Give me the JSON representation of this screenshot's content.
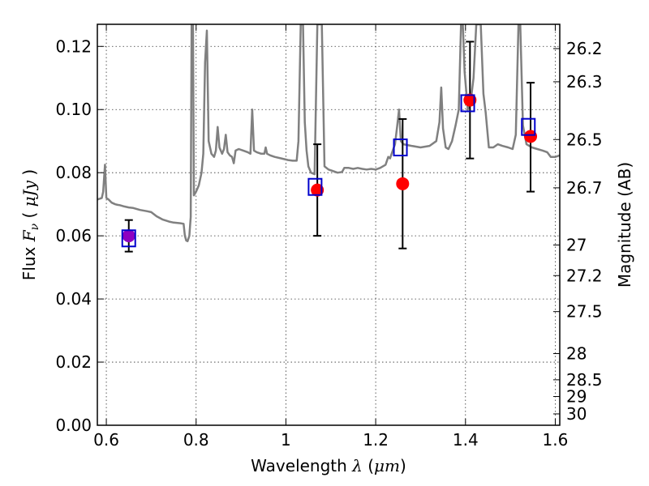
{
  "chart_data": {
    "type": "scatter",
    "xlabel": "Wavelength  λ (μm)",
    "ylabel": "Flux  F_ν  ( μJy )",
    "ylabel_parts": {
      "prefix": "Flux ",
      "symbol": "F",
      "subscript": "ν",
      "open": " ( ",
      "unit": "μJy",
      "close": " )"
    },
    "xlabel_parts": {
      "prefix": "Wavelength  ",
      "symbol": "λ",
      "open": " (",
      "unit": "μm",
      "close": ")"
    },
    "y2label": "Magnitude (AB)",
    "xlim": [
      0.58,
      1.61
    ],
    "ylim": [
      0.0,
      0.127
    ],
    "grid": true,
    "x_ticks": [
      {
        "value": 0.6,
        "label": "0.6"
      },
      {
        "value": 0.8,
        "label": "0.8"
      },
      {
        "value": 1.0,
        "label": "1"
      },
      {
        "value": 1.2,
        "label": "1.2"
      },
      {
        "value": 1.4,
        "label": "1.4"
      },
      {
        "value": 1.6,
        "label": "1.6"
      }
    ],
    "y_ticks": [
      {
        "value": 0.0,
        "label": "0.00"
      },
      {
        "value": 0.02,
        "label": "0.02"
      },
      {
        "value": 0.04,
        "label": "0.04"
      },
      {
        "value": 0.06,
        "label": "0.06"
      },
      {
        "value": 0.08,
        "label": "0.08"
      },
      {
        "value": 0.1,
        "label": "0.10"
      },
      {
        "value": 0.12,
        "label": "0.12"
      }
    ],
    "y2_ticks": [
      {
        "label": "26.2",
        "flux": 0.1193
      },
      {
        "label": "26.3",
        "flux": 0.1088
      },
      {
        "label": "26.5",
        "flux": 0.0905
      },
      {
        "label": "26.7",
        "flux": 0.0752
      },
      {
        "label": "27",
        "flux": 0.0571
      },
      {
        "label": "27.2",
        "flux": 0.0474
      },
      {
        "label": "27.5",
        "flux": 0.036
      },
      {
        "label": "28",
        "flux": 0.0227
      },
      {
        "label": "28.5",
        "flux": 0.0144
      },
      {
        "label": "29",
        "flux": 0.0091
      },
      {
        "label": "30",
        "flux": 0.0036
      }
    ],
    "model_spectrum": {
      "color": "#808080",
      "points": [
        [
          0.58,
          0.0715
        ],
        [
          0.59,
          0.072
        ],
        [
          0.593,
          0.074
        ],
        [
          0.597,
          0.0825
        ],
        [
          0.6,
          0.072
        ],
        [
          0.605,
          0.0715
        ],
        [
          0.612,
          0.0705
        ],
        [
          0.62,
          0.07
        ],
        [
          0.625,
          0.0698
        ],
        [
          0.63,
          0.0697
        ],
        [
          0.64,
          0.0693
        ],
        [
          0.65,
          0.069
        ],
        [
          0.66,
          0.0688
        ],
        [
          0.675,
          0.0682
        ],
        [
          0.69,
          0.0678
        ],
        [
          0.7,
          0.0675
        ],
        [
          0.712,
          0.0662
        ],
        [
          0.725,
          0.0652
        ],
        [
          0.74,
          0.0645
        ],
        [
          0.75,
          0.0642
        ],
        [
          0.765,
          0.064
        ],
        [
          0.772,
          0.0638
        ],
        [
          0.775,
          0.06
        ],
        [
          0.778,
          0.0585
        ],
        [
          0.781,
          0.0583
        ],
        [
          0.785,
          0.06
        ],
        [
          0.788,
          0.066
        ],
        [
          0.79,
          0.127
        ],
        [
          0.793,
          0.127
        ],
        [
          0.795,
          0.0728
        ],
        [
          0.8,
          0.074
        ],
        [
          0.806,
          0.076
        ],
        [
          0.812,
          0.08
        ],
        [
          0.816,
          0.086
        ],
        [
          0.82,
          0.115
        ],
        [
          0.824,
          0.125
        ],
        [
          0.828,
          0.09
        ],
        [
          0.834,
          0.086
        ],
        [
          0.84,
          0.085
        ],
        [
          0.844,
          0.087
        ],
        [
          0.848,
          0.0945
        ],
        [
          0.852,
          0.088
        ],
        [
          0.858,
          0.086
        ],
        [
          0.862,
          0.0875
        ],
        [
          0.866,
          0.092
        ],
        [
          0.87,
          0.0865
        ],
        [
          0.875,
          0.0855
        ],
        [
          0.88,
          0.085
        ],
        [
          0.884,
          0.083
        ],
        [
          0.888,
          0.087
        ],
        [
          0.895,
          0.0875
        ],
        [
          0.905,
          0.087
        ],
        [
          0.915,
          0.0865
        ],
        [
          0.921,
          0.086
        ],
        [
          0.925,
          0.1
        ],
        [
          0.929,
          0.087
        ],
        [
          0.935,
          0.0865
        ],
        [
          0.945,
          0.086
        ],
        [
          0.952,
          0.086
        ],
        [
          0.955,
          0.088
        ],
        [
          0.958,
          0.086
        ],
        [
          0.965,
          0.0855
        ],
        [
          0.975,
          0.085
        ],
        [
          0.99,
          0.0845
        ],
        [
          1.005,
          0.084
        ],
        [
          1.015,
          0.0838
        ],
        [
          1.024,
          0.0838
        ],
        [
          1.028,
          0.09
        ],
        [
          1.033,
          0.127
        ],
        [
          1.038,
          0.127
        ],
        [
          1.042,
          0.096
        ],
        [
          1.046,
          0.087
        ],
        [
          1.05,
          0.082
        ],
        [
          1.056,
          0.08
        ],
        [
          1.064,
          0.0795
        ],
        [
          1.07,
          0.127
        ],
        [
          1.08,
          0.127
        ],
        [
          1.086,
          0.082
        ],
        [
          1.095,
          0.081
        ],
        [
          1.105,
          0.0805
        ],
        [
          1.115,
          0.08
        ],
        [
          1.125,
          0.0802
        ],
        [
          1.13,
          0.0815
        ],
        [
          1.14,
          0.0815
        ],
        [
          1.15,
          0.0812
        ],
        [
          1.16,
          0.0815
        ],
        [
          1.17,
          0.0812
        ],
        [
          1.18,
          0.081
        ],
        [
          1.19,
          0.0812
        ],
        [
          1.2,
          0.081
        ],
        [
          1.21,
          0.0815
        ],
        [
          1.222,
          0.0825
        ],
        [
          1.228,
          0.085
        ],
        [
          1.232,
          0.0845
        ],
        [
          1.238,
          0.087
        ],
        [
          1.243,
          0.089
        ],
        [
          1.248,
          0.095
        ],
        [
          1.252,
          0.1
        ],
        [
          1.256,
          0.09
        ],
        [
          1.262,
          0.089
        ],
        [
          1.28,
          0.0885
        ],
        [
          1.3,
          0.088
        ],
        [
          1.32,
          0.0885
        ],
        [
          1.335,
          0.09
        ],
        [
          1.342,
          0.096
        ],
        [
          1.346,
          0.107
        ],
        [
          1.35,
          0.094
        ],
        [
          1.356,
          0.088
        ],
        [
          1.362,
          0.0875
        ],
        [
          1.37,
          0.09
        ],
        [
          1.378,
          0.095
        ],
        [
          1.385,
          0.1
        ],
        [
          1.39,
          0.127
        ],
        [
          1.394,
          0.127
        ],
        [
          1.398,
          0.112
        ],
        [
          1.405,
          0.1
        ],
        [
          1.412,
          0.103
        ],
        [
          1.418,
          0.11
        ],
        [
          1.424,
          0.127
        ],
        [
          1.434,
          0.127
        ],
        [
          1.44,
          0.105
        ],
        [
          1.445,
          0.099
        ],
        [
          1.452,
          0.088
        ],
        [
          1.462,
          0.088
        ],
        [
          1.472,
          0.089
        ],
        [
          1.482,
          0.0885
        ],
        [
          1.495,
          0.088
        ],
        [
          1.505,
          0.0875
        ],
        [
          1.512,
          0.092
        ],
        [
          1.518,
          0.127
        ],
        [
          1.522,
          0.127
        ],
        [
          1.528,
          0.095
        ],
        [
          1.536,
          0.089
        ],
        [
          1.548,
          0.088
        ],
        [
          1.56,
          0.0875
        ],
        [
          1.572,
          0.087
        ],
        [
          1.582,
          0.0865
        ],
        [
          1.59,
          0.085
        ],
        [
          1.6,
          0.085
        ],
        [
          1.61,
          0.0855
        ]
      ]
    },
    "observed": [
      {
        "x": 0.65,
        "y": 0.06,
        "yerr_low": 0.005,
        "yerr_high": 0.005,
        "color": "#8e00c0"
      },
      {
        "x": 1.07,
        "y": 0.0745,
        "yerr_low": 0.0145,
        "yerr_high": 0.0145,
        "color": "#ff0000"
      },
      {
        "x": 1.26,
        "y": 0.0765,
        "yerr_low": 0.0205,
        "yerr_high": 0.0205,
        "color": "#ff0000"
      },
      {
        "x": 1.41,
        "y": 0.103,
        "yerr_low": 0.0185,
        "yerr_high": 0.0185,
        "color": "#ff0000"
      },
      {
        "x": 1.545,
        "y": 0.0915,
        "yerr_low": 0.0175,
        "yerr_high": 0.017,
        "color": "#ff0000"
      }
    ],
    "model_photometry": {
      "color": "#0000cc",
      "points": [
        {
          "x": 0.65,
          "y": 0.0592
        },
        {
          "x": 1.065,
          "y": 0.0755
        },
        {
          "x": 1.255,
          "y": 0.088
        },
        {
          "x": 1.405,
          "y": 0.102
        },
        {
          "x": 1.54,
          "y": 0.0945
        }
      ]
    }
  }
}
